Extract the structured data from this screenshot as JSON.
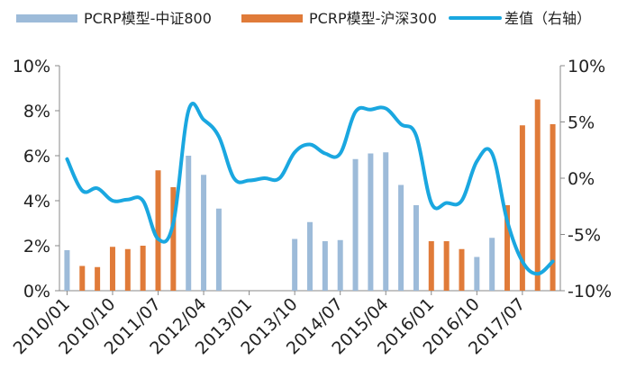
{
  "chart_data": {
    "type": "bar",
    "x_ticks": [
      "2010/01",
      "2010/10",
      "2011/07",
      "2012/04",
      "2013/01",
      "2013/10",
      "2014/07",
      "2015/04",
      "2016/01",
      "2016/10",
      "2017/07"
    ],
    "series": [
      {
        "name": "PCRP模型-中证800",
        "kind": "bar",
        "axis": "left",
        "color": "#9dbbd9",
        "values": [
          1.8,
          0,
          0,
          0,
          0,
          0,
          0,
          0,
          6.0,
          5.15,
          3.65,
          0,
          0,
          0,
          0,
          2.3,
          3.05,
          2.2,
          2.25,
          5.85,
          6.1,
          6.15,
          4.7,
          3.8,
          0,
          0,
          0,
          1.5,
          2.35,
          0,
          0,
          0,
          0
        ]
      },
      {
        "name": "PCRP模型-沪深300",
        "kind": "bar",
        "axis": "left",
        "color": "#e07b39",
        "values": [
          0,
          1.1,
          1.05,
          1.95,
          1.85,
          2.0,
          5.35,
          4.6,
          0,
          0,
          0,
          0,
          0,
          0,
          0,
          0,
          0,
          0,
          0,
          0,
          0,
          0,
          0,
          0,
          2.2,
          2.2,
          1.85,
          0,
          0,
          3.8,
          7.35,
          8.5,
          7.4
        ]
      },
      {
        "name": "差值（右轴）",
        "kind": "line",
        "axis": "right",
        "color": "#1aa7e0",
        "values": [
          1.7,
          -1.1,
          -0.9,
          -2.0,
          -1.9,
          -2.0,
          -5.4,
          -4.0,
          6.0,
          5.2,
          3.7,
          0.0,
          -0.2,
          0.0,
          0.0,
          2.3,
          3.0,
          2.2,
          2.2,
          5.9,
          6.1,
          6.2,
          4.8,
          3.8,
          -2.2,
          -2.2,
          -2.0,
          1.5,
          2.2,
          -3.8,
          -7.4,
          -8.5,
          -7.4
        ]
      }
    ],
    "y_left": {
      "min": 0,
      "max": 10,
      "ticks": [
        "0%",
        "2%",
        "4%",
        "6%",
        "8%",
        "10%"
      ]
    },
    "y_right": {
      "min": -10,
      "max": 10,
      "ticks": [
        "-10%",
        "-5%",
        "0%",
        "5%",
        "10%"
      ]
    },
    "legend_position": "top"
  }
}
